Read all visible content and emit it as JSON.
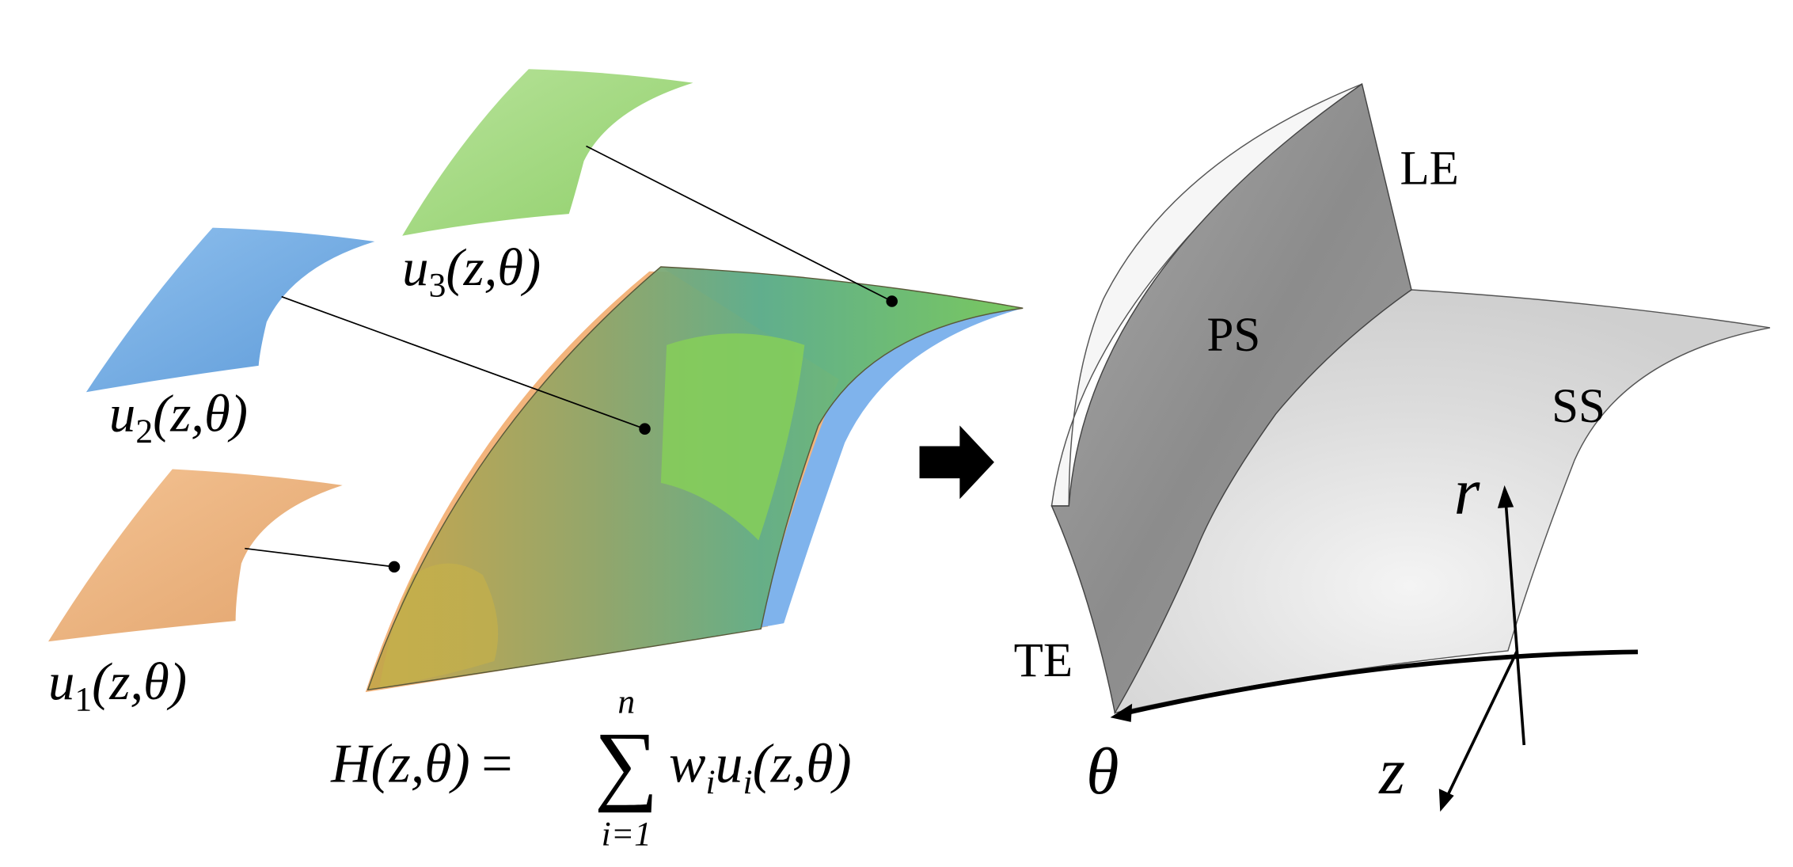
{
  "figure": {
    "basis_surfaces": [
      {
        "symbol": "u",
        "index": "1",
        "arguments": "(z,θ)"
      },
      {
        "symbol": "u",
        "index": "2",
        "arguments": "(z,θ)"
      },
      {
        "symbol": "u",
        "index": "3",
        "arguments": "(z,θ)"
      }
    ],
    "formula": {
      "lhs": "H(z,θ)",
      "equals": "=",
      "sum": "∑",
      "upper": "n",
      "lower": "i=1",
      "weight": "w",
      "weight_index": "i",
      "basis": "u",
      "basis_index": "i",
      "arguments": "(z,θ)"
    },
    "blade_labels": {
      "pressure_side": "PS",
      "suction_side": "SS",
      "leading_edge": "LE",
      "trailing_edge": "TE"
    },
    "axes": {
      "r": "r",
      "theta": "θ",
      "z": "z"
    }
  }
}
